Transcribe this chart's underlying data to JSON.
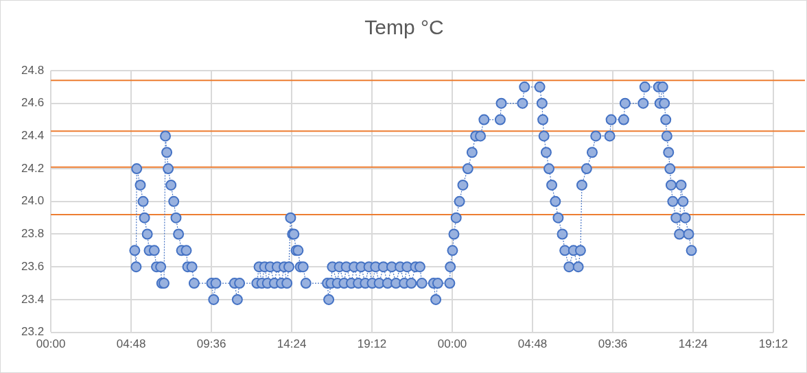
{
  "chart_data": {
    "type": "line",
    "title": "Temp °C",
    "marker": "circle",
    "line_style": "dotted",
    "grid": true,
    "legend": false,
    "xlim": [
      "--01-01T00:00",
      "--01-02T19:12"
    ],
    "xticks": [
      {
        "value": "--01-01T00:00",
        "label": "00:00"
      },
      {
        "value": "--01-01T04:48",
        "label": "04:48"
      },
      {
        "value": "--01-01T09:36",
        "label": "09:36"
      },
      {
        "value": "--01-01T14:24",
        "label": "14:24"
      },
      {
        "value": "--01-01T19:12",
        "label": "19:12"
      },
      {
        "value": "--01-02T00:00",
        "label": "00:00"
      },
      {
        "value": "--01-02T04:48",
        "label": "04:48"
      },
      {
        "value": "--01-02T09:36",
        "label": "09:36"
      },
      {
        "value": "--01-02T14:24",
        "label": "14:24"
      },
      {
        "value": "--01-02T19:12",
        "label": "19:12"
      }
    ],
    "ylim": [
      23.2,
      24.8
    ],
    "yticks": [
      23.2,
      23.4,
      23.6,
      23.8,
      {
        "value": 24,
        "label": "24.0"
      },
      24.2,
      24.4,
      24.6,
      24.8
    ],
    "ref_lines": [
      {
        "axis": "y",
        "value": 24.74,
        "color": "#ed7d31"
      },
      {
        "axis": "y",
        "value": 24.43,
        "color": "#ed7d31"
      },
      {
        "axis": "y",
        "value": 24.21,
        "color": "#ed7d31"
      },
      {
        "axis": "y",
        "value": 23.92,
        "color": "#ed7d31"
      }
    ],
    "series": [
      {
        "color": "#4472c4",
        "x": [
          "--01-01T05:01",
          "--01-01T05:06",
          "--01-01T05:08",
          "--01-01T05:21",
          "--01-01T05:31",
          "--01-01T05:36",
          "--01-01T05:46",
          "--01-01T05:53",
          "--01-01T06:11",
          "--01-01T06:19",
          "--01-01T06:34",
          "--01-01T06:38",
          "--01-01T06:46",
          "--01-01T06:51",
          "--01-01T06:56",
          "--01-01T07:01",
          "--01-01T07:11",
          "--01-01T07:21",
          "--01-01T07:29",
          "--01-01T07:38",
          "--01-01T07:49",
          "--01-01T08:06",
          "--01-01T08:11",
          "--01-01T08:26",
          "--01-01T08:34",
          "--01-01T09:37",
          "--01-01T09:44",
          "--01-01T09:52",
          "--01-01T10:59",
          "--01-01T11:09",
          "--01-01T11:17",
          "--01-01T12:19",
          "--01-01T12:27",
          "--01-01T12:37",
          "--01-01T12:47",
          "--01-01T12:57",
          "--01-01T13:07",
          "--01-01T13:22",
          "--01-01T13:32",
          "--01-01T13:47",
          "--01-01T13:57",
          "--01-01T14:07",
          "--01-01T14:14",
          "--01-01T14:20",
          "--01-01T14:27",
          "--01-01T14:32",
          "--01-01T14:40",
          "--01-01T14:47",
          "--01-01T14:55",
          "--01-01T15:05",
          "--01-01T15:15",
          "--01-01T16:32",
          "--01-01T16:37",
          "--01-01T16:45",
          "--01-01T16:50",
          "--01-01T17:08",
          "--01-01T17:15",
          "--01-01T17:32",
          "--01-01T17:40",
          "--01-01T17:58",
          "--01-01T18:08",
          "--01-01T18:23",
          "--01-01T18:33",
          "--01-01T18:48",
          "--01-01T19:01",
          "--01-01T19:13",
          "--01-01T19:25",
          "--01-01T19:38",
          "--01-01T19:53",
          "--01-01T20:08",
          "--01-01T20:23",
          "--01-01T20:38",
          "--01-01T20:53",
          "--01-01T21:08",
          "--01-01T21:18",
          "--01-01T21:33",
          "--01-01T21:48",
          "--01-01T22:04",
          "--01-01T22:11",
          "--01-01T22:53",
          "--01-01T23:01",
          "--01-01T23:08",
          "--01-01T23:51",
          "--01-01T23:53",
          "--01-02T00:01",
          "--01-02T00:06",
          "--01-02T00:14",
          "--01-02T00:26",
          "--01-02T00:38",
          "--01-02T00:56",
          "--01-02T01:11",
          "--01-02T01:24",
          "--01-02T01:41",
          "--01-02T01:54",
          "--01-02T02:52",
          "--01-02T02:56",
          "--01-02T04:12",
          "--01-02T04:19",
          "--01-02T05:14",
          "--01-02T05:22",
          "--01-02T05:25",
          "--01-02T05:29",
          "--01-02T05:37",
          "--01-02T05:47",
          "--01-02T05:57",
          "--01-02T06:10",
          "--01-02T06:20",
          "--01-02T06:35",
          "--01-02T06:44",
          "--01-02T06:59",
          "--01-02T07:15",
          "--01-02T07:32",
          "--01-02T07:40",
          "--01-02T07:45",
          "--01-02T08:02",
          "--01-02T08:22",
          "--01-02T08:35",
          "--01-02T09:25",
          "--01-02T09:30",
          "--01-02T10:15",
          "--01-02T10:20",
          "--01-02T11:25",
          "--01-02T11:31",
          "--01-02T12:20",
          "--01-02T12:25",
          "--01-02T12:35",
          "--01-02T12:41",
          "--01-02T12:46",
          "--01-02T12:50",
          "--01-02T12:56",
          "--01-02T13:01",
          "--01-02T13:05",
          "--01-02T13:11",
          "--01-02T13:23",
          "--01-02T13:35",
          "--01-02T13:41",
          "--01-02T13:48",
          "--01-02T13:56",
          "--01-02T14:08",
          "--01-02T14:18"
        ],
        "values": [
          23.7,
          23.6,
          24.2,
          24.1,
          24.0,
          23.9,
          23.8,
          23.7,
          23.7,
          23.6,
          23.6,
          23.5,
          23.5,
          24.4,
          24.3,
          24.2,
          24.1,
          24.0,
          23.9,
          23.8,
          23.7,
          23.7,
          23.6,
          23.6,
          23.5,
          23.5,
          23.4,
          23.5,
          23.5,
          23.4,
          23.5,
          23.5,
          23.6,
          23.5,
          23.6,
          23.5,
          23.6,
          23.5,
          23.6,
          23.5,
          23.6,
          23.5,
          23.6,
          23.9,
          23.8,
          23.8,
          23.7,
          23.7,
          23.6,
          23.6,
          23.5,
          23.5,
          23.4,
          23.5,
          23.6,
          23.5,
          23.6,
          23.5,
          23.6,
          23.5,
          23.6,
          23.5,
          23.6,
          23.5,
          23.6,
          23.5,
          23.6,
          23.5,
          23.6,
          23.5,
          23.6,
          23.5,
          23.6,
          23.5,
          23.6,
          23.5,
          23.6,
          23.6,
          23.5,
          23.5,
          23.4,
          23.5,
          23.5,
          23.6,
          23.7,
          23.8,
          23.9,
          24.0,
          24.1,
          24.2,
          24.3,
          24.4,
          24.4,
          24.5,
          24.5,
          24.6,
          24.6,
          24.7,
          24.7,
          24.6,
          24.5,
          24.4,
          24.3,
          24.2,
          24.1,
          24.0,
          23.9,
          23.8,
          23.7,
          23.6,
          23.7,
          23.6,
          23.7,
          24.1,
          24.2,
          24.3,
          24.4,
          24.4,
          24.5,
          24.5,
          24.6,
          24.6,
          24.7,
          24.7,
          24.6,
          24.7,
          24.6,
          24.5,
          24.4,
          24.3,
          24.2,
          24.1,
          24.0,
          23.9,
          23.8,
          24.1,
          24.0,
          23.9,
          23.8,
          23.7
        ]
      }
    ]
  }
}
